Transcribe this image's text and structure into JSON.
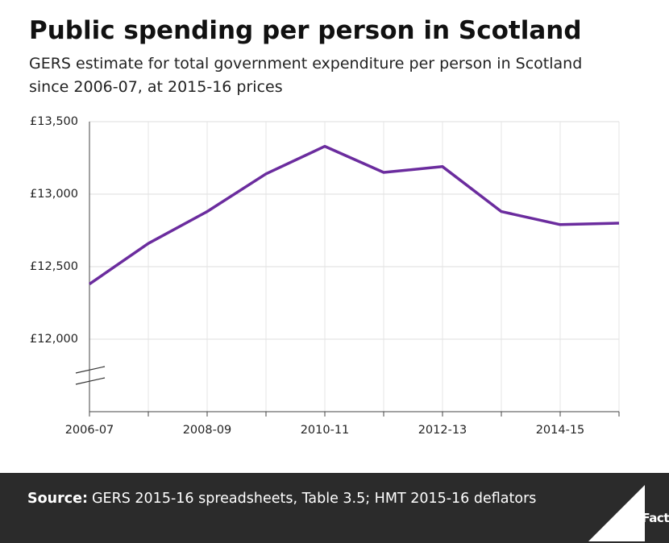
{
  "chart_data": {
    "type": "line",
    "title": "Public spending per person in Scotland",
    "subtitle": [
      "GERS estimate for total government expenditure per person in Scotland",
      "since 2006-07, at 2015-16 prices"
    ],
    "categories": [
      "2006-07",
      null,
      "2008-09",
      null,
      "2010-11",
      null,
      "2012-13",
      null,
      "2014-15",
      null
    ],
    "values": [
      12380,
      12660,
      12880,
      13140,
      13330,
      13150,
      13190,
      12880,
      12790,
      12800
    ],
    "color": "#6b2c9e",
    "ylim": [
      11500,
      13500
    ],
    "yticks": [
      {
        "value": 12000,
        "label": "£12,000"
      },
      {
        "value": 12500,
        "label": "£12,500"
      },
      {
        "value": 13000,
        "label": "£13,000"
      },
      {
        "value": 13500,
        "label": "£13,500"
      }
    ],
    "grid": true
  },
  "footer": {
    "source_label": "Source:",
    "source_text": "GERS 2015-16 spreadsheets, Table 3.5; HMT 2015-16 deflators",
    "logo": "Full Fact"
  }
}
